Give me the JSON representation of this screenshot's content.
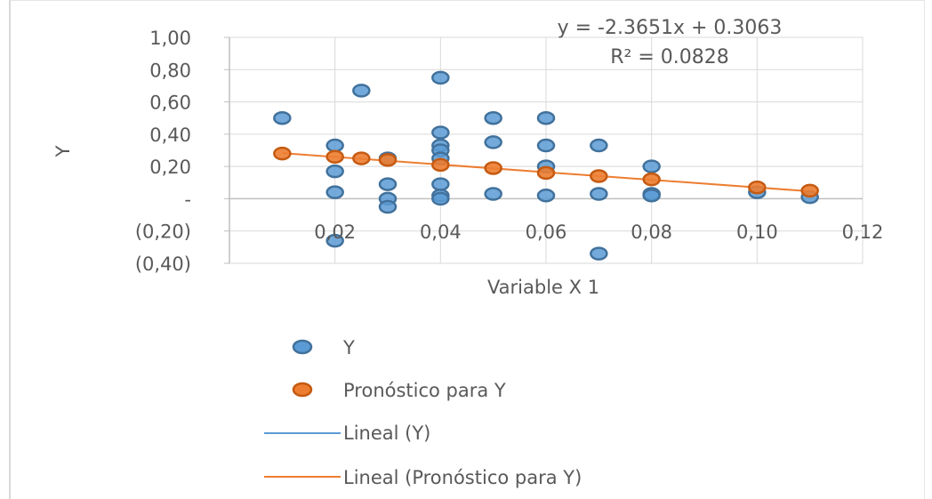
{
  "chart_data": {
    "type": "scatter",
    "xlabel": "Variable X 1",
    "ylabel": "Y",
    "xlim": [
      0,
      0.12
    ],
    "ylim": [
      -0.4,
      1.0
    ],
    "x_ticks": [
      {
        "v": 0.02,
        "label": "0,02"
      },
      {
        "v": 0.04,
        "label": "0,04"
      },
      {
        "v": 0.06,
        "label": "0,06"
      },
      {
        "v": 0.08,
        "label": "0,08"
      },
      {
        "v": 0.1,
        "label": "0,10"
      },
      {
        "v": 0.12,
        "label": "0,12"
      }
    ],
    "y_ticks": [
      {
        "v": 1.0,
        "label": "1,00"
      },
      {
        "v": 0.8,
        "label": "0,80"
      },
      {
        "v": 0.6,
        "label": "0,60"
      },
      {
        "v": 0.4,
        "label": "0,40"
      },
      {
        "v": 0.2,
        "label": "0,20"
      },
      {
        "v": 0.0,
        "label": "-"
      },
      {
        "v": -0.2,
        "label": "(0,20)"
      },
      {
        "v": -0.4,
        "label": "(0,40)"
      }
    ],
    "grid": true,
    "equation": "y = -2.3651x + 0.3063",
    "r_squared": "R² = 0.0828",
    "series": [
      {
        "name": "Y",
        "color": "#5b9bd5",
        "points": [
          [
            0.01,
            0.5
          ],
          [
            0.02,
            0.33
          ],
          [
            0.02,
            0.17
          ],
          [
            0.02,
            0.04
          ],
          [
            0.02,
            -0.26
          ],
          [
            0.025,
            0.67
          ],
          [
            0.03,
            0.25
          ],
          [
            0.03,
            0.09
          ],
          [
            0.03,
            0.0
          ],
          [
            0.03,
            -0.05
          ],
          [
            0.04,
            0.75
          ],
          [
            0.04,
            0.41
          ],
          [
            0.04,
            0.33
          ],
          [
            0.04,
            0.3
          ],
          [
            0.04,
            0.25
          ],
          [
            0.04,
            0.09
          ],
          [
            0.04,
            0.02
          ],
          [
            0.04,
            0.0
          ],
          [
            0.05,
            0.5
          ],
          [
            0.05,
            0.35
          ],
          [
            0.05,
            0.03
          ],
          [
            0.06,
            0.5
          ],
          [
            0.06,
            0.33
          ],
          [
            0.06,
            0.2
          ],
          [
            0.06,
            0.02
          ],
          [
            0.07,
            0.33
          ],
          [
            0.07,
            0.03
          ],
          [
            0.07,
            -0.34
          ],
          [
            0.08,
            0.2
          ],
          [
            0.08,
            0.03
          ],
          [
            0.08,
            0.02
          ],
          [
            0.1,
            0.04
          ],
          [
            0.11,
            0.01
          ]
        ]
      },
      {
        "name": "Pronóstico para Y",
        "color": "#ed7d31",
        "points": [
          [
            0.01,
            0.28
          ],
          [
            0.02,
            0.26
          ],
          [
            0.025,
            0.25
          ],
          [
            0.03,
            0.24
          ],
          [
            0.04,
            0.21
          ],
          [
            0.05,
            0.19
          ],
          [
            0.06,
            0.16
          ],
          [
            0.07,
            0.14
          ],
          [
            0.08,
            0.12
          ],
          [
            0.1,
            0.07
          ],
          [
            0.11,
            0.05
          ]
        ]
      }
    ],
    "trendlines": [
      {
        "name": "Lineal (Y)",
        "color": "#5b9bd5"
      },
      {
        "name": "Lineal (Pronóstico para Y)",
        "color": "#ed7d31"
      }
    ],
    "legend_position": "bottom"
  }
}
